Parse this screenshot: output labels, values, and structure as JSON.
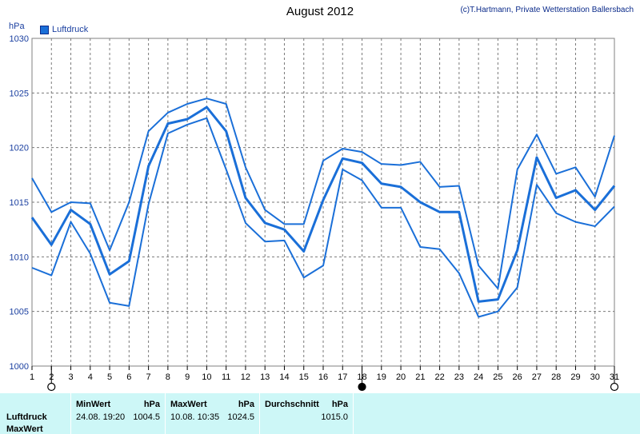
{
  "title": "August 2012",
  "copyright": "(c)T.Hartmann, Private Wetterstation Ballersbach",
  "unit": "hPa",
  "legend": {
    "label": "Luftdruck",
    "color": "#1a6fd8"
  },
  "chart_data": {
    "type": "line",
    "title": "August 2012",
    "ylabel": "hPa",
    "ylim": [
      1000,
      1030
    ],
    "yticks": [
      1000,
      1005,
      1010,
      1015,
      1020,
      1025,
      1030
    ],
    "x": [
      1,
      2,
      3,
      4,
      5,
      6,
      7,
      8,
      9,
      10,
      11,
      12,
      13,
      14,
      15,
      16,
      17,
      18,
      19,
      20,
      21,
      22,
      23,
      24,
      25,
      26,
      27,
      28,
      29,
      30,
      31
    ],
    "grid": true,
    "series": [
      {
        "name": "Luftdruck",
        "style": "mean",
        "values": [
          1013.6,
          1011.1,
          1014.3,
          1013.0,
          1008.4,
          1009.6,
          1018.3,
          1022.2,
          1022.6,
          1023.7,
          1021.5,
          1015.4,
          1013.1,
          1012.5,
          1010.5,
          1015.2,
          1019.0,
          1018.6,
          1016.7,
          1016.4,
          1015.0,
          1014.1,
          1014.1,
          1005.9,
          1006.1,
          1010.6,
          1019.1,
          1015.4,
          1016.1,
          1014.3,
          1016.5
        ]
      },
      {
        "style": "max",
        "values": [
          1017.2,
          1014.1,
          1015.0,
          1014.9,
          1010.6,
          1015.0,
          1021.5,
          1023.2,
          1024.0,
          1024.5,
          1024.0,
          1018.2,
          1014.3,
          1013.0,
          1013.0,
          1018.8,
          1019.9,
          1019.6,
          1018.5,
          1018.4,
          1018.7,
          1016.4,
          1016.5,
          1009.2,
          1007.1,
          1018.0,
          1021.2,
          1017.6,
          1018.2,
          1015.5,
          1021.1
        ]
      },
      {
        "style": "min",
        "values": [
          1009.0,
          1008.3,
          1013.2,
          1010.3,
          1005.8,
          1005.5,
          1014.8,
          1021.3,
          1022.1,
          1022.7,
          1018.0,
          1013.1,
          1011.4,
          1011.5,
          1008.1,
          1009.2,
          1018.0,
          1017.0,
          1014.5,
          1014.5,
          1010.9,
          1010.7,
          1008.5,
          1004.5,
          1005.0,
          1007.2,
          1016.6,
          1014.0,
          1013.2,
          1012.8,
          1014.6
        ]
      }
    ],
    "markers": [
      {
        "x": 2,
        "type": "open-circle"
      },
      {
        "x": 18,
        "type": "filled-circle"
      },
      {
        "x": 31,
        "type": "open-circle"
      }
    ]
  },
  "stats": {
    "row_label": "Luftdruck",
    "row_label2": "MaxWert",
    "min": {
      "header": "MinWert",
      "unit": "hPa",
      "datetime": "24.08.  19:20",
      "value": "1004.5"
    },
    "max": {
      "header": "MaxWert",
      "unit": "hPa",
      "datetime": "10.08.  10:35",
      "value": "1024.5"
    },
    "avg": {
      "header": "Durchschnitt",
      "unit": "hPa",
      "value": "1015.0"
    }
  }
}
